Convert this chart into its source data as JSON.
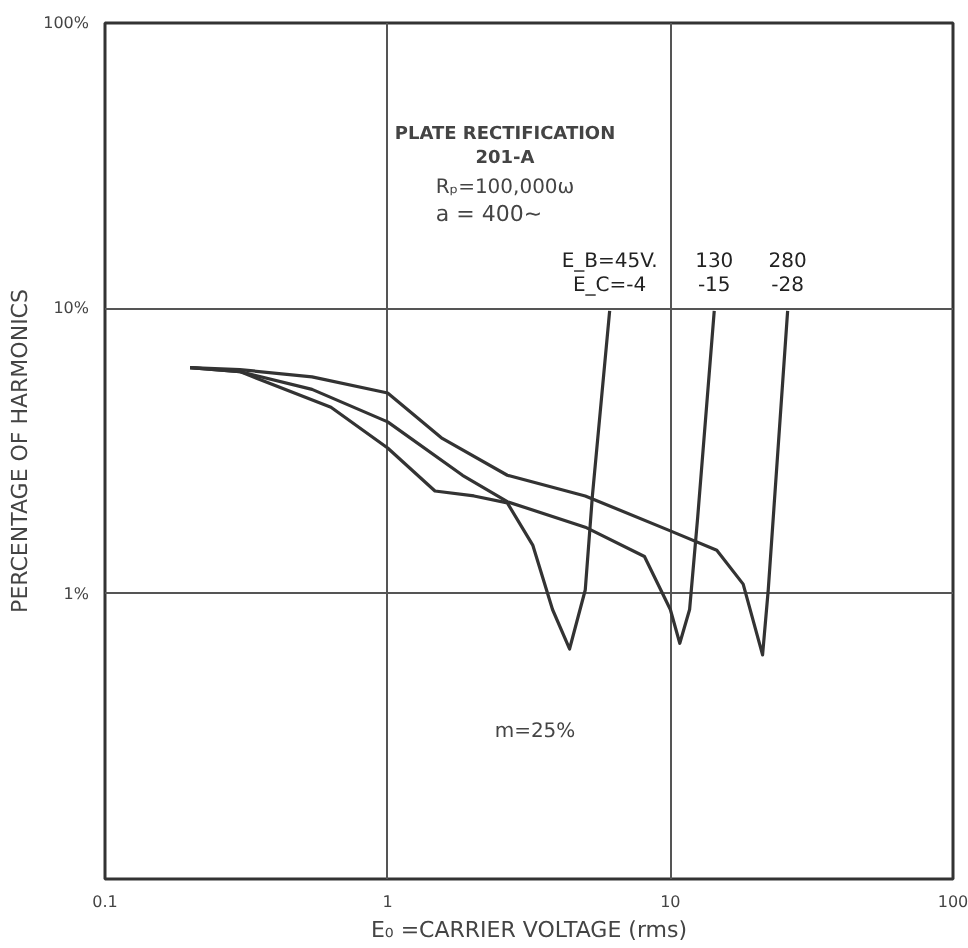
{
  "chart_data": {
    "type": "line",
    "title": "PLATE RECTIFICATION",
    "subtitle": "201-A",
    "xlabel": "E₀ =CARRIER VOLTAGE (rms)",
    "ylabel": "PERCENTAGE OF HARMONICS",
    "annotations": [
      "Rₚ=100,000ω",
      "a = 400~",
      "m=25%"
    ],
    "log": "xy",
    "grid": true,
    "marker": "none",
    "line_style": "solid",
    "xlim": [
      0.1,
      100
    ],
    "xticks": [
      0.1,
      1,
      10,
      100
    ],
    "ylim": [
      0.1,
      100
    ],
    "yticks": [
      {
        "value": 0.1,
        "label": null
      },
      {
        "value": 1,
        "label": "1%"
      },
      {
        "value": 10,
        "label": "10%"
      },
      {
        "value": 100,
        "label": "100%"
      }
    ],
    "series": [
      {
        "name": "E_B=45V.\nE_C=-4",
        "color": "#333333",
        "x": [
          0.2,
          0.3,
          0.63,
          1.0,
          1.47,
          2.02,
          2.65,
          3.26,
          3.83,
          4.4,
          5.0,
          5.3,
          6.1
        ],
        "values": [
          6.2,
          6.0,
          4.5,
          3.24,
          2.29,
          2.2,
          2.08,
          1.48,
          0.88,
          0.64,
          1.03,
          2.2,
          9.8
        ]
      },
      {
        "name": "130\n-15",
        "color": "#333333",
        "x": [
          0.2,
          0.3,
          0.54,
          1.0,
          1.84,
          2.65,
          5.0,
          8.1,
          10,
          10.8,
          11.7,
          12.5,
          14.3
        ],
        "values": [
          6.2,
          6.0,
          5.2,
          4.0,
          2.6,
          2.1,
          1.71,
          1.35,
          0.88,
          0.67,
          0.88,
          1.86,
          9.8
        ]
      },
      {
        "name": "280\n-28",
        "color": "#333333",
        "x": [
          0.2,
          0.3,
          0.54,
          1.0,
          1.56,
          2.65,
          5.0,
          10,
          14.6,
          18.1,
          21.2,
          22.2,
          26
        ],
        "values": [
          6.2,
          6.1,
          5.75,
          5.05,
          3.5,
          2.6,
          2.2,
          1.66,
          1.42,
          1.08,
          0.61,
          1.03,
          9.8
        ]
      }
    ]
  }
}
